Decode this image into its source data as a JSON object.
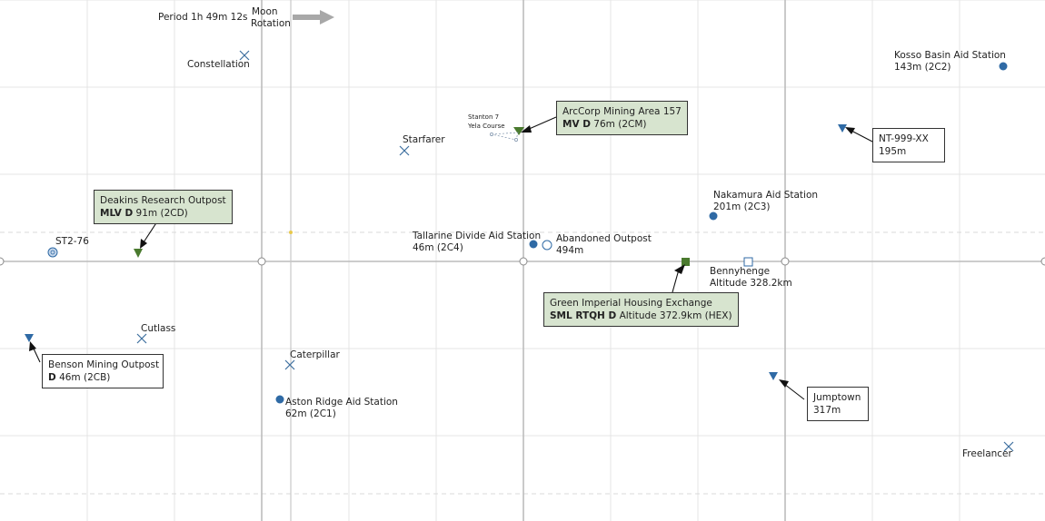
{
  "header": {
    "period": "Period 1h 49m 12s",
    "rotation_line1": "Moon",
    "rotation_line2": "Rotation"
  },
  "colors": {
    "grid": "#e2e2e2",
    "axis": "#bdbdbd",
    "blue_marker": "#2f6aa5",
    "green_marker": "#4a7a2e",
    "green_box": "#d7e4cf",
    "arrow_grey": "#a8a8a8"
  },
  "locations": {
    "constellation": "Constellation",
    "kosso_name": "Kosso Basin Aid Station",
    "kosso_detail": "143m (2C2)",
    "stanton_line1": "Stanton 7",
    "stanton_line2": "Yela Course",
    "starfarer": "Starfarer",
    "nakamura_name": "Nakamura Aid Station",
    "nakamura_detail": "201m (2C3)",
    "st2": "ST2-76",
    "tallarine_name": "Tallarine Divide Aid Station",
    "tallarine_detail": "46m (2C4)",
    "abandoned_name": "Abandoned Outpost",
    "abandoned_detail": "494m",
    "bennyhenge_name": "Bennyhenge",
    "bennyhenge_detail": "Altitude 328.2km",
    "cutlass": "Cutlass",
    "caterpillar": "Caterpillar",
    "aston_name": "Aston Ridge Aid Station",
    "aston_detail": "62m (2C1)",
    "freelancer": "Freelancer"
  },
  "callouts": {
    "arccorp": {
      "name": "ArcCorp Mining Area 157",
      "code": "MV D",
      "detail": "76m (2CM)"
    },
    "nt999": {
      "name": "NT-999-XX",
      "detail": "195m"
    },
    "deakins": {
      "name": "Deakins Research Outpost",
      "code": "MLV D",
      "detail": "91m (2CD)"
    },
    "green_imperial": {
      "name": "Green Imperial Housing Exchange",
      "code": "SML RTQH D",
      "detail": "Altitude 372.9km (HEX)"
    },
    "benson": {
      "name": "Benson Mining Outpost",
      "code": "D",
      "detail": "46m (2CB)"
    },
    "jumptown": {
      "name": "Jumptown",
      "detail": "317m"
    }
  }
}
